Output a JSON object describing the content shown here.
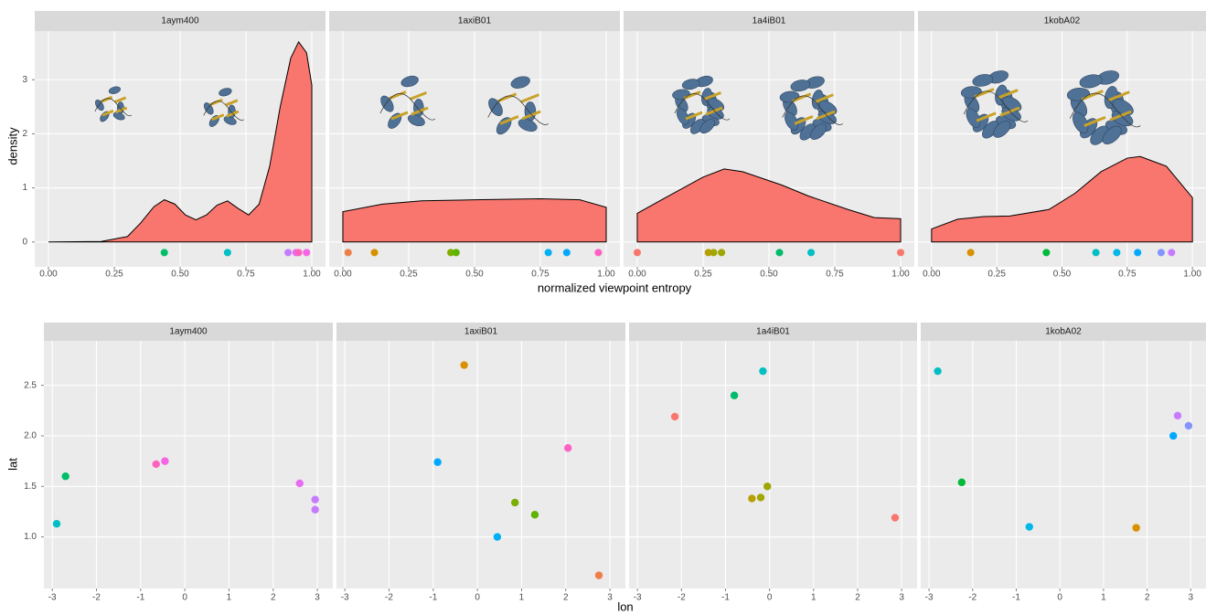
{
  "chart_data": [
    {
      "type": "density",
      "x_label": "normalized viewpoint entropy",
      "y_label": "density",
      "xlim": [
        -0.052,
        1.052
      ],
      "ylim": [
        -0.46,
        3.9
      ],
      "xticks": [
        {
          "value": 0,
          "label": "0.00"
        },
        {
          "value": 0.25,
          "label": "0.25"
        },
        {
          "value": 0.5,
          "label": "0.50"
        },
        {
          "value": 0.75,
          "label": "0.75"
        },
        {
          "value": 1,
          "label": "1.00"
        }
      ],
      "yticks": [
        0,
        1,
        2,
        3
      ],
      "grid": true,
      "fill": "#F8766D",
      "facets": [
        {
          "title": "1aym400",
          "x": [
            0,
            0.2,
            0.3,
            0.35,
            0.4,
            0.44,
            0.48,
            0.52,
            0.56,
            0.6,
            0.64,
            0.68,
            0.72,
            0.76,
            0.8,
            0.84,
            0.88,
            0.92,
            0.95,
            0.98,
            1.0
          ],
          "y": [
            0,
            0.01,
            0.1,
            0.35,
            0.65,
            0.78,
            0.7,
            0.5,
            0.41,
            0.5,
            0.68,
            0.76,
            0.62,
            0.5,
            0.7,
            1.4,
            2.5,
            3.4,
            3.7,
            3.5,
            2.9
          ],
          "points": {
            "x": [
              0.44,
              0.68,
              0.91,
              0.94,
              0.95,
              0.98
            ],
            "colors": [
              "#00BE67",
              "#00BFC4",
              "#C77CFF",
              "#E76BF3",
              "#FF62BC",
              "#F564E3"
            ]
          }
        },
        {
          "title": "1axiB01",
          "x": [
            0,
            0.15,
            0.3,
            0.5,
            0.75,
            0.9,
            1.0
          ],
          "y": [
            0.56,
            0.7,
            0.76,
            0.78,
            0.8,
            0.78,
            0.64
          ],
          "points": {
            "x": [
              0.02,
              0.12,
              0.41,
              0.43,
              0.78,
              0.85,
              0.97
            ],
            "colors": [
              "#EF7F49",
              "#D89000",
              "#7CAE00",
              "#5EB300",
              "#00B0F6",
              "#00A9FF",
              "#FF61C3"
            ]
          }
        },
        {
          "title": "1a4iB01",
          "x": [
            0,
            0.1,
            0.25,
            0.33,
            0.4,
            0.55,
            0.65,
            0.8,
            0.9,
            1.0
          ],
          "y": [
            0.53,
            0.8,
            1.2,
            1.35,
            1.3,
            1.05,
            0.85,
            0.6,
            0.45,
            0.43
          ],
          "points": {
            "x": [
              0.0,
              0.27,
              0.29,
              0.32,
              0.54,
              0.66,
              1.0
            ],
            "colors": [
              "#F8766D",
              "#B79F00",
              "#A3A500",
              "#9DA700",
              "#00BA6B",
              "#00BFC4",
              "#F8766D"
            ]
          }
        },
        {
          "title": "1kobA02",
          "x": [
            0,
            0.1,
            0.2,
            0.3,
            0.45,
            0.55,
            0.65,
            0.75,
            0.8,
            0.9,
            1.0
          ],
          "y": [
            0.24,
            0.42,
            0.47,
            0.48,
            0.6,
            0.9,
            1.3,
            1.55,
            1.58,
            1.4,
            0.82
          ],
          "points": {
            "x": [
              0.15,
              0.44,
              0.63,
              0.71,
              0.79,
              0.88,
              0.92
            ],
            "colors": [
              "#D89000",
              "#00BA38",
              "#00BFC4",
              "#00B8E7",
              "#00A9FF",
              "#8494FF",
              "#C77CFF"
            ]
          }
        }
      ]
    },
    {
      "type": "scatter",
      "x_label": "lon",
      "y_label": "lat",
      "xlim": [
        -3.19,
        3.35
      ],
      "ylim": [
        0.49,
        2.94
      ],
      "xticks": [
        -3,
        -2,
        -1,
        0,
        1,
        2,
        3
      ],
      "yticks": [
        {
          "value": 1,
          "label": "1.0"
        },
        {
          "value": 1.5,
          "label": "1.5"
        },
        {
          "value": 2,
          "label": "2.0"
        },
        {
          "value": 2.5,
          "label": "2.5"
        }
      ],
      "grid": true,
      "facets": [
        {
          "title": "1aym400",
          "x": [
            -2.7,
            -2.9,
            -0.65,
            -0.45,
            2.6,
            2.95,
            2.95
          ],
          "y": [
            1.6,
            1.13,
            1.72,
            1.75,
            1.53,
            1.37,
            1.27
          ],
          "colors": [
            "#00BE67",
            "#00BFC4",
            "#FF62BC",
            "#F564E3",
            "#E76BF3",
            "#C77CFF",
            "#C77CFF"
          ]
        },
        {
          "title": "1axiB01",
          "x": [
            -0.3,
            -0.9,
            2.05,
            0.85,
            1.3,
            0.45,
            2.75
          ],
          "y": [
            2.7,
            1.74,
            1.88,
            1.34,
            1.22,
            1.0,
            0.62
          ],
          "colors": [
            "#D89000",
            "#00A9FF",
            "#FF61C3",
            "#7CAE00",
            "#5EB300",
            "#00B0F6",
            "#EF7F49"
          ]
        },
        {
          "title": "1a4iB01",
          "x": [
            -2.15,
            -0.8,
            -0.15,
            -0.4,
            -0.2,
            -0.05,
            2.85
          ],
          "y": [
            2.19,
            2.4,
            2.64,
            1.38,
            1.39,
            1.5,
            1.19
          ],
          "colors": [
            "#F8766D",
            "#00BA6B",
            "#00BFC4",
            "#B79F00",
            "#A3A500",
            "#9DA700",
            "#F8766D"
          ]
        },
        {
          "title": "1kobA02",
          "x": [
            -2.8,
            -2.25,
            -0.7,
            1.75,
            2.6,
            2.7,
            2.95
          ],
          "y": [
            2.64,
            1.54,
            1.1,
            1.09,
            2.0,
            2.2,
            2.1
          ],
          "colors": [
            "#00BFC4",
            "#00BA38",
            "#00B8E7",
            "#D89000",
            "#00A9FF",
            "#C77CFF",
            "#8494FF"
          ]
        }
      ]
    }
  ]
}
